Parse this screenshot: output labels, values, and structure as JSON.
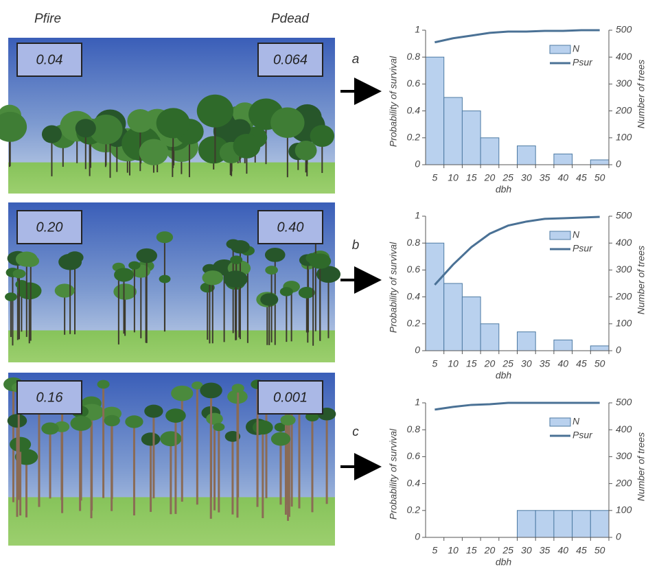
{
  "columns": [
    "Pfire",
    "Pdead"
  ],
  "panels": [
    {
      "label": "a",
      "pfire": "0.04",
      "pdead": "0.064"
    },
    {
      "label": "b",
      "pfire": "0.20",
      "pdead": "0.40"
    },
    {
      "label": "c",
      "pfire": "0.16",
      "pdead": "0.001"
    }
  ],
  "chart_data": [
    {
      "type": "combo",
      "xlabel": "dbh",
      "ylabel": "Probability of survival",
      "y2label": "Number of trees",
      "categories": [
        5,
        10,
        15,
        20,
        25,
        30,
        35,
        40,
        45,
        50
      ],
      "ylim": [
        0,
        1
      ],
      "yticks": [
        0,
        0.2,
        0.4,
        0.6,
        0.8,
        1
      ],
      "y2lim": [
        0,
        500
      ],
      "y2ticks": [
        0,
        100,
        200,
        300,
        400,
        500
      ],
      "series": [
        {
          "name": "N",
          "type": "bar",
          "axis": "y2",
          "color": "#b9d1ee",
          "edgecolor": "#4d7aa3",
          "values": [
            400,
            250,
            200,
            100,
            0,
            70,
            0,
            40,
            0,
            18
          ]
        },
        {
          "name": "Psur",
          "type": "line",
          "color": "#4a7195",
          "values": [
            0.91,
            0.94,
            0.96,
            0.98,
            0.99,
            0.99,
            0.995,
            0.995,
            1,
            1
          ]
        }
      ]
    },
    {
      "type": "combo",
      "xlabel": "dbh",
      "ylabel": "Probability of survival",
      "y2label": "Number of trees",
      "categories": [
        5,
        10,
        15,
        20,
        25,
        30,
        35,
        40,
        45,
        50
      ],
      "ylim": [
        0,
        1
      ],
      "yticks": [
        0,
        0.2,
        0.4,
        0.6,
        0.8,
        1
      ],
      "y2lim": [
        0,
        500
      ],
      "y2ticks": [
        0,
        100,
        200,
        300,
        400,
        500
      ],
      "series": [
        {
          "name": "N",
          "type": "bar",
          "axis": "y2",
          "color": "#b9d1ee",
          "edgecolor": "#4d7aa3",
          "values": [
            400,
            250,
            200,
            100,
            0,
            70,
            0,
            40,
            0,
            18
          ]
        },
        {
          "name": "Psur",
          "type": "line",
          "color": "#4a7195",
          "values": [
            0.49,
            0.64,
            0.77,
            0.87,
            0.93,
            0.96,
            0.98,
            0.985,
            0.99,
            0.995
          ]
        }
      ]
    },
    {
      "type": "combo",
      "xlabel": "dbh",
      "ylabel": "Probability of survival",
      "y2label": "Number of trees",
      "categories": [
        5,
        10,
        15,
        20,
        25,
        30,
        35,
        40,
        45,
        50
      ],
      "ylim": [
        0,
        1
      ],
      "yticks": [
        0,
        0.2,
        0.4,
        0.6,
        0.8,
        1
      ],
      "y2lim": [
        0,
        500
      ],
      "y2ticks": [
        0,
        100,
        200,
        300,
        400,
        500
      ],
      "series": [
        {
          "name": "N",
          "type": "bar",
          "axis": "y2",
          "color": "#b9d1ee",
          "edgecolor": "#4d7aa3",
          "values": [
            0,
            0,
            0,
            0,
            0,
            100,
            100,
            100,
            100,
            100
          ]
        },
        {
          "name": "Psur",
          "type": "line",
          "color": "#4a7195",
          "values": [
            0.95,
            0.97,
            0.985,
            0.99,
            1,
            1,
            1,
            1,
            1,
            1
          ]
        }
      ]
    }
  ]
}
